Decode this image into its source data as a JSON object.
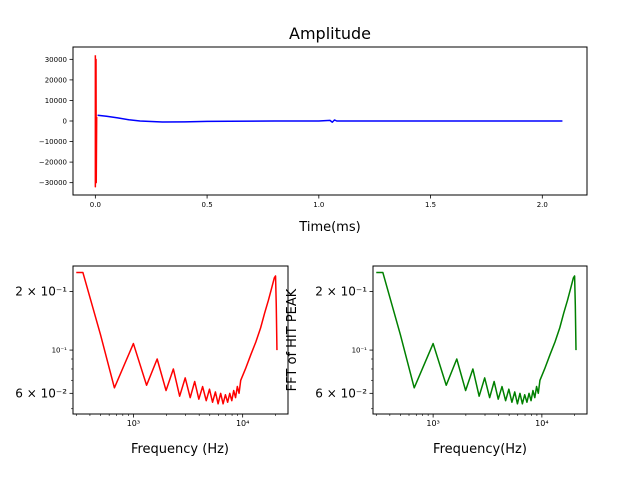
{
  "chart_data": [
    {
      "type": "line",
      "title": "Amplitude",
      "xlabel": "Time(ms)",
      "ylabel": "",
      "xlim": [
        -0.1,
        2.2
      ],
      "ylim": [
        -36000,
        36000
      ],
      "xticks": [
        0.0,
        0.5,
        1.0,
        1.5,
        2.0
      ],
      "xtick_labels": [
        "0.0",
        "0.5",
        "1.0",
        "1.5",
        "2.0"
      ],
      "yticks": [
        30000,
        20000,
        10000,
        0,
        -10000,
        -20000,
        -30000
      ],
      "ytick_labels": [
        "30000",
        "20000",
        "10000",
        "0",
        "−10000",
        "−20000",
        "−30000"
      ],
      "grid": false,
      "series": [
        {
          "color": "#ff0000",
          "x": [
            0.0,
            0.0,
            0.003,
            0.004,
            0.006
          ],
          "y": [
            32000,
            -32000,
            30000,
            -30000,
            2000
          ]
        },
        {
          "color": "#0000ff",
          "x": [
            0.01,
            0.05,
            0.1,
            0.15,
            0.2,
            0.3,
            0.4,
            0.5,
            0.6,
            0.8,
            1.0,
            1.05,
            1.06,
            1.07,
            1.08,
            1.2,
            1.5,
            1.8,
            2.09
          ],
          "y": [
            2800,
            2300,
            1500,
            600,
            0,
            -500,
            -400,
            -200,
            -100,
            0,
            0,
            300,
            -600,
            500,
            0,
            0,
            0,
            0,
            0
          ]
        }
      ]
    },
    {
      "type": "line",
      "title": "",
      "xlabel": "Frequency (Hz)",
      "ylabel": "",
      "xscale": "log",
      "yscale": "log",
      "xlim": [
        280,
        26000
      ],
      "ylim": [
        0.047,
        0.27
      ],
      "xticks": [
        1000,
        10000
      ],
      "xtick_labels": [
        "10³",
        "10⁴"
      ],
      "yticks": [
        0.2,
        0.1,
        0.06
      ],
      "ytick_labels": [
        "2 × 10⁻¹",
        "10⁻¹",
        "6 × 10⁻²"
      ],
      "grid": false,
      "series": [
        {
          "color": "#ff0000",
          "x": [
            300,
            345,
            500,
            670,
            1000,
            1320,
            1650,
            1990,
            2320,
            2650,
            2980,
            3310,
            3640,
            3970,
            4300,
            4640,
            4970,
            5300,
            5630,
            5960,
            6290,
            6620,
            6950,
            7290,
            7620,
            7950,
            8280,
            8610,
            8940,
            9270,
            9600,
            10600,
            11900,
            13200,
            14600,
            15900,
            17200,
            18500,
            19500,
            20000,
            20300,
            20600
          ],
          "y": [
            0.25,
            0.25,
            0.12,
            0.064,
            0.108,
            0.066,
            0.09,
            0.062,
            0.08,
            0.058,
            0.072,
            0.057,
            0.069,
            0.056,
            0.065,
            0.055,
            0.063,
            0.054,
            0.061,
            0.053,
            0.06,
            0.053,
            0.059,
            0.054,
            0.06,
            0.055,
            0.062,
            0.057,
            0.065,
            0.06,
            0.07,
            0.08,
            0.095,
            0.11,
            0.13,
            0.155,
            0.18,
            0.21,
            0.235,
            0.24,
            0.17,
            0.1
          ]
        }
      ]
    },
    {
      "type": "line",
      "title": "",
      "xlabel": "Frequency(Hz)",
      "ylabel": "FFT of HIT PEAK",
      "xscale": "log",
      "yscale": "log",
      "xlim": [
        280,
        26000
      ],
      "ylim": [
        0.047,
        0.27
      ],
      "xticks": [
        1000,
        10000
      ],
      "xtick_labels": [
        "10³",
        "10⁴"
      ],
      "yticks": [
        0.2,
        0.1,
        0.06
      ],
      "ytick_labels": [
        "2 × 10⁻¹",
        "10⁻¹",
        "6 × 10⁻²"
      ],
      "grid": false,
      "series": [
        {
          "color": "#008000",
          "x": [
            300,
            345,
            500,
            670,
            1000,
            1320,
            1650,
            1990,
            2320,
            2650,
            2980,
            3310,
            3640,
            3970,
            4300,
            4640,
            4970,
            5300,
            5630,
            5960,
            6290,
            6620,
            6950,
            7290,
            7620,
            7950,
            8280,
            8610,
            8940,
            9270,
            9600,
            10600,
            11900,
            13200,
            14600,
            15900,
            17200,
            18500,
            19500,
            20000,
            20300,
            20600
          ],
          "y": [
            0.25,
            0.25,
            0.12,
            0.064,
            0.108,
            0.066,
            0.09,
            0.062,
            0.08,
            0.058,
            0.072,
            0.057,
            0.069,
            0.056,
            0.065,
            0.055,
            0.063,
            0.054,
            0.061,
            0.053,
            0.06,
            0.053,
            0.059,
            0.054,
            0.06,
            0.055,
            0.062,
            0.057,
            0.065,
            0.06,
            0.07,
            0.08,
            0.095,
            0.11,
            0.13,
            0.155,
            0.18,
            0.21,
            0.235,
            0.24,
            0.17,
            0.1
          ]
        }
      ]
    }
  ]
}
